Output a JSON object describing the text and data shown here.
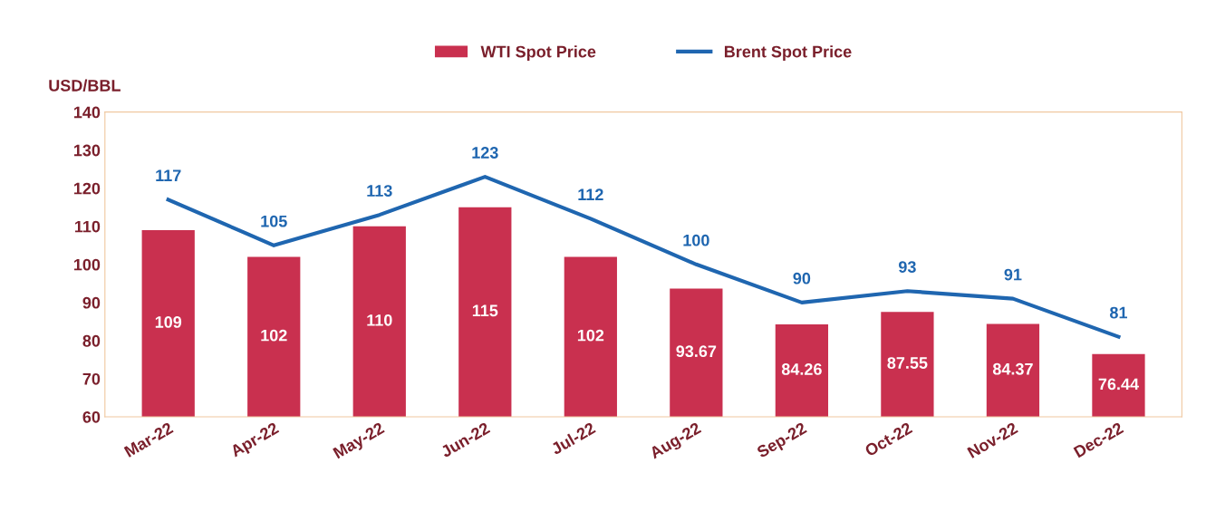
{
  "chart_data": {
    "type": "bar",
    "ylabel": "USD/BBL",
    "categories": [
      "Mar-22",
      "Apr-22",
      "May-22",
      "Jun-22",
      "Jul-22",
      "Aug-22",
      "Sep-22",
      "Oct-22",
      "Nov-22",
      "Dec-22"
    ],
    "series": [
      {
        "name": "WTI Spot Price",
        "color": "#c9304f",
        "values": [
          109,
          102,
          110,
          115,
          102,
          93.67,
          84.26,
          87.55,
          84.37,
          76.44
        ]
      },
      {
        "name": "Brent Spot Price",
        "type": "line",
        "color": "#1f66b0",
        "values": [
          117,
          105,
          113,
          123,
          112,
          100,
          90,
          93,
          91,
          81
        ]
      }
    ],
    "ylim": [
      60,
      140
    ],
    "yticks": [
      60,
      70,
      80,
      90,
      100,
      110,
      120,
      130,
      140
    ],
    "data_labels": true,
    "legend": "top",
    "grid": false,
    "marker": "none",
    "line_style": "solid"
  }
}
